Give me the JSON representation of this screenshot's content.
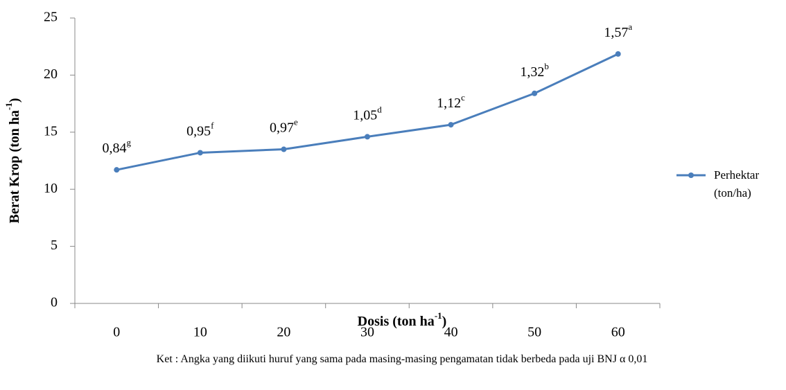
{
  "chart_data": {
    "type": "line",
    "categories": [
      "0",
      "10",
      "20",
      "30",
      "40",
      "50",
      "60"
    ],
    "series": [
      {
        "name": "Perhektar (ton/ha)",
        "color": "#4a7ebb",
        "values": [
          11.7,
          13.2,
          13.5,
          14.6,
          15.65,
          18.4,
          21.85
        ]
      }
    ],
    "point_labels": [
      {
        "text": "0,84",
        "sup": "g"
      },
      {
        "text": "0,95",
        "sup": "f"
      },
      {
        "text": "0,97",
        "sup": "e"
      },
      {
        "text": "1,05",
        "sup": "d"
      },
      {
        "text": "1,12",
        "sup": "c"
      },
      {
        "text": "1,32",
        "sup": "b"
      },
      {
        "text": "1,57",
        "sup": "a"
      }
    ],
    "y_label": {
      "text": "Berat Krop (ton ha",
      "sup": "-1",
      "end": ")"
    },
    "x_label": {
      "text": "Dosis (ton ha",
      "sup": "-1",
      "end": ")"
    },
    "ylim": [
      0,
      25
    ],
    "yticks": [
      0,
      5,
      10,
      15,
      20,
      25
    ],
    "legend": "right",
    "note": "Ket : Angka yang diikuti huruf yang sama pada masing-masing pengamatan tidak berbeda pada uji BNJ α 0,01"
  }
}
